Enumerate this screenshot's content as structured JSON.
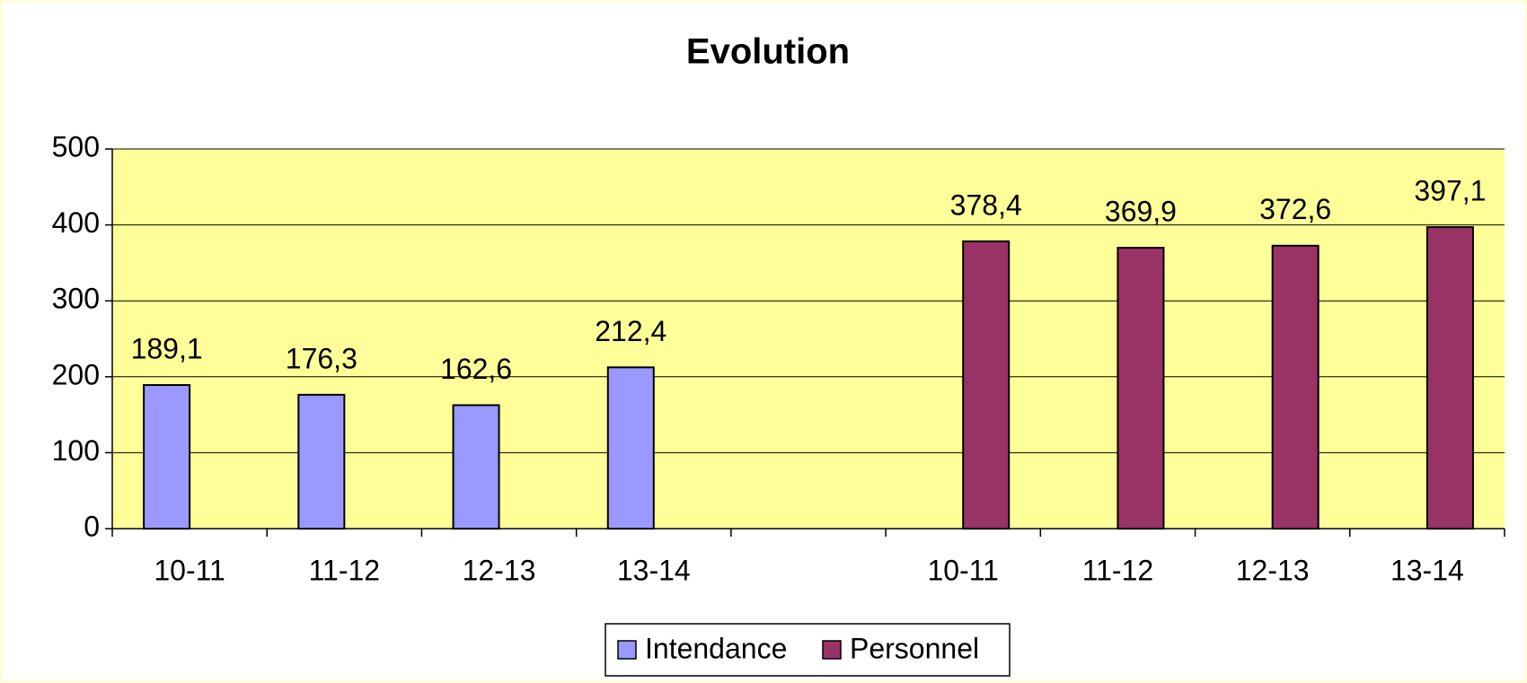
{
  "chart_data": {
    "type": "bar",
    "title": "Evolution",
    "categories": [
      "10-11",
      "11-12",
      "12-13",
      "13-14",
      null,
      "10-11",
      "11-12",
      "12-13",
      "13-14"
    ],
    "series": [
      {
        "name": "Intendance",
        "color": "#9999ff",
        "values": [
          189.1,
          176.3,
          162.6,
          212.4,
          null,
          null,
          null,
          null,
          null
        ],
        "value_labels": [
          "189,1",
          "176,3",
          "162,6",
          "212,4",
          null,
          null,
          null,
          null,
          null
        ]
      },
      {
        "name": "Personnel",
        "color": "#993366",
        "values": [
          null,
          null,
          null,
          null,
          null,
          378.4,
          369.9,
          372.6,
          397.1
        ],
        "value_labels": [
          null,
          null,
          null,
          null,
          null,
          "378,4",
          "369,9",
          "372,6",
          "397,1"
        ]
      }
    ],
    "ylim": [
      0,
      500
    ],
    "yticks": [
      0,
      100,
      200,
      300,
      400,
      500
    ],
    "grid": true,
    "legend": "bottom"
  }
}
